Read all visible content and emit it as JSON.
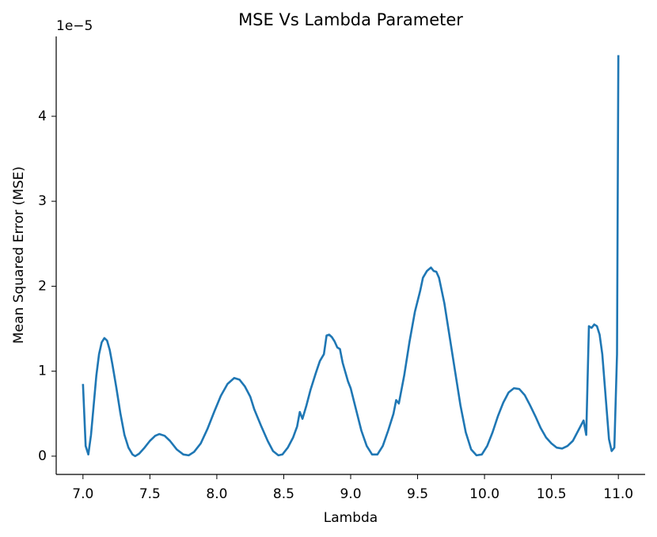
{
  "chart_data": {
    "type": "line",
    "title": "MSE Vs Lambda Parameter",
    "x_label": "Lambda",
    "y_label": "Mean Squared Error (MSE)",
    "y_offset_text": "1e−5",
    "x": [
      7.0,
      7.02,
      7.04,
      7.06,
      7.08,
      7.1,
      7.12,
      7.14,
      7.16,
      7.18,
      7.2,
      7.22,
      7.25,
      7.28,
      7.31,
      7.34,
      7.37,
      7.39,
      7.42,
      7.46,
      7.5,
      7.54,
      7.57,
      7.61,
      7.65,
      7.7,
      7.75,
      7.79,
      7.83,
      7.88,
      7.93,
      7.98,
      8.03,
      8.08,
      8.13,
      8.17,
      8.21,
      8.25,
      8.28,
      8.33,
      8.38,
      8.42,
      8.46,
      8.49,
      8.53,
      8.57,
      8.6,
      8.62,
      8.64,
      8.67,
      8.7,
      8.74,
      8.77,
      8.8,
      8.82,
      8.84,
      8.86,
      8.88,
      8.9,
      8.92,
      8.94,
      8.98,
      9.0,
      9.04,
      9.08,
      9.12,
      9.16,
      9.2,
      9.24,
      9.28,
      9.32,
      9.34,
      9.36,
      9.4,
      9.44,
      9.48,
      9.52,
      9.54,
      9.57,
      9.6,
      9.62,
      9.64,
      9.66,
      9.7,
      9.74,
      9.78,
      9.82,
      9.86,
      9.9,
      9.94,
      9.98,
      10.02,
      10.06,
      10.1,
      10.14,
      10.18,
      10.22,
      10.26,
      10.3,
      10.34,
      10.38,
      10.42,
      10.46,
      10.5,
      10.54,
      10.58,
      10.62,
      10.66,
      10.7,
      10.74,
      10.76,
      10.78,
      10.8,
      10.82,
      10.84,
      10.86,
      10.88,
      10.9,
      10.93,
      10.95,
      10.97,
      10.99,
      11.0
    ],
    "series": [
      {
        "color": "#1f77b4",
        "values": [
          0.85,
          0.12,
          0.02,
          0.25,
          0.6,
          0.95,
          1.2,
          1.34,
          1.39,
          1.36,
          1.25,
          1.08,
          0.8,
          0.5,
          0.25,
          0.1,
          0.02,
          0.0,
          0.03,
          0.1,
          0.18,
          0.24,
          0.26,
          0.24,
          0.18,
          0.08,
          0.02,
          0.01,
          0.05,
          0.15,
          0.32,
          0.52,
          0.71,
          0.85,
          0.92,
          0.9,
          0.82,
          0.7,
          0.55,
          0.36,
          0.18,
          0.06,
          0.01,
          0.02,
          0.1,
          0.22,
          0.35,
          0.52,
          0.44,
          0.6,
          0.78,
          0.98,
          1.12,
          1.2,
          1.42,
          1.43,
          1.4,
          1.35,
          1.28,
          1.26,
          1.1,
          0.88,
          0.8,
          0.55,
          0.3,
          0.12,
          0.02,
          0.02,
          0.12,
          0.3,
          0.5,
          0.66,
          0.62,
          0.95,
          1.35,
          1.7,
          1.95,
          2.1,
          2.18,
          2.22,
          2.18,
          2.17,
          2.1,
          1.8,
          1.4,
          1.0,
          0.6,
          0.28,
          0.08,
          0.01,
          0.02,
          0.12,
          0.28,
          0.47,
          0.63,
          0.75,
          0.8,
          0.79,
          0.72,
          0.6,
          0.47,
          0.33,
          0.22,
          0.15,
          0.1,
          0.09,
          0.12,
          0.18,
          0.3,
          0.42,
          0.25,
          1.53,
          1.51,
          1.55,
          1.53,
          1.43,
          1.2,
          0.8,
          0.2,
          0.06,
          0.1,
          1.2,
          4.72
        ]
      }
    ],
    "xlim": [
      6.8,
      11.2
    ],
    "ylim": [
      -0.215,
      4.94
    ],
    "xticks": [
      {
        "value": 7.0,
        "label": "7.0"
      },
      {
        "value": 7.5,
        "label": "7.5"
      },
      {
        "value": 8.0,
        "label": "8.0"
      },
      {
        "value": 8.5,
        "label": "8.5"
      },
      {
        "value": 9.0,
        "label": "9.0"
      },
      {
        "value": 9.5,
        "label": "9.5"
      },
      {
        "value": 10.0,
        "label": "10.0"
      },
      {
        "value": 10.5,
        "label": "10.5"
      },
      {
        "value": 11.0,
        "label": "11.0"
      }
    ],
    "yticks": [
      0,
      1,
      2,
      3,
      4
    ]
  }
}
